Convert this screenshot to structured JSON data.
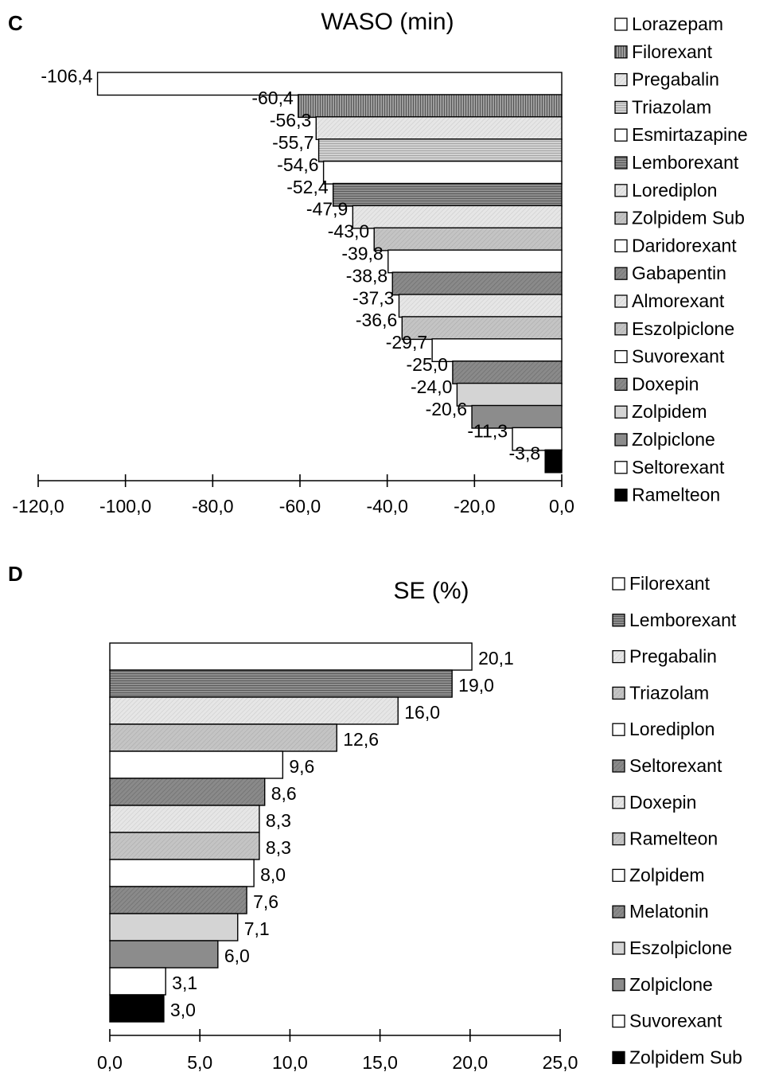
{
  "chart_data": [
    {
      "panel": "C",
      "type": "bar",
      "orientation": "horizontal",
      "title": "WASO (min)",
      "xlim": [
        -120,
        0
      ],
      "x_ticks": [
        "-120,0",
        "-100,0",
        "-80,0",
        "-60,0",
        "-40,0",
        "-20,0",
        "0,0"
      ],
      "grid": false,
      "legend_placement": "right",
      "categories": [
        "Lorazepam",
        "Filorexant",
        "Pregabalin",
        "Triazolam",
        "Esmirtazapine",
        "Lemborexant",
        "Lorediplon",
        "Zolpidem Sub",
        "Daridorexant",
        "Gabapentin",
        "Almorexant",
        "Eszolpiclone",
        "Suvorexant",
        "Doxepin",
        "Zolpidem",
        "Zolpiclone",
        "Seltorexant",
        "Ramelteon"
      ],
      "values": [
        -106.4,
        -60.4,
        -56.3,
        -55.7,
        -54.6,
        -52.4,
        -47.9,
        -43.0,
        -39.8,
        -38.8,
        -37.3,
        -36.6,
        -29.7,
        -25.0,
        -24.0,
        -20.6,
        -11.3,
        -3.8
      ],
      "value_labels": [
        "-106,4",
        "-60,4",
        "-56,3",
        "-55,7",
        "-54,6",
        "-52,4",
        "-47,9",
        "-43,0",
        "-39,8",
        "-38,8",
        "-37,3",
        "-36,6",
        "-29,7",
        "-25,0",
        "-24,0",
        "-20,6",
        "-11,3",
        "-3,8"
      ],
      "fills": [
        "white",
        "vlines-dark",
        "diag-light",
        "hlines-light",
        "white",
        "hlines-dark",
        "diag-light",
        "diag-mid",
        "white",
        "diag-dark",
        "diag-light",
        "diag-mid",
        "white",
        "diag-dark",
        "solid-light",
        "solid-mid",
        "white",
        "black"
      ]
    },
    {
      "panel": "D",
      "type": "bar",
      "orientation": "horizontal",
      "title": "SE (%)",
      "xlim": [
        0,
        25
      ],
      "x_ticks": [
        "0,0",
        "5,0",
        "10,0",
        "15,0",
        "20,0",
        "25,0"
      ],
      "grid": false,
      "legend_placement": "right",
      "categories": [
        "Filorexant",
        "Lemborexant",
        "Pregabalin",
        "Triazolam",
        "Lorediplon",
        "Seltorexant",
        "Doxepin",
        "Ramelteon",
        "Zolpidem",
        "Melatonin",
        "Eszolpiclone",
        "Zolpiclone",
        "Suvorexant",
        "Zolpidem Sub"
      ],
      "values": [
        20.1,
        19.0,
        16.0,
        12.6,
        9.6,
        8.6,
        8.3,
        8.3,
        8.0,
        7.6,
        7.1,
        6.0,
        3.1,
        3.0
      ],
      "value_labels": [
        "20,1",
        "19,0",
        "16,0",
        "12,6",
        "9,6",
        "8,6",
        "8,3",
        "8,3",
        "8,0",
        "7,6",
        "7,1",
        "6,0",
        "3,1",
        "3,0"
      ],
      "fills": [
        "white",
        "hlines-dark",
        "diag-light",
        "diag-mid",
        "white",
        "diag-dark",
        "diag-light",
        "diag-mid",
        "white",
        "diag-dark",
        "solid-light",
        "solid-mid",
        "white",
        "black"
      ]
    }
  ]
}
